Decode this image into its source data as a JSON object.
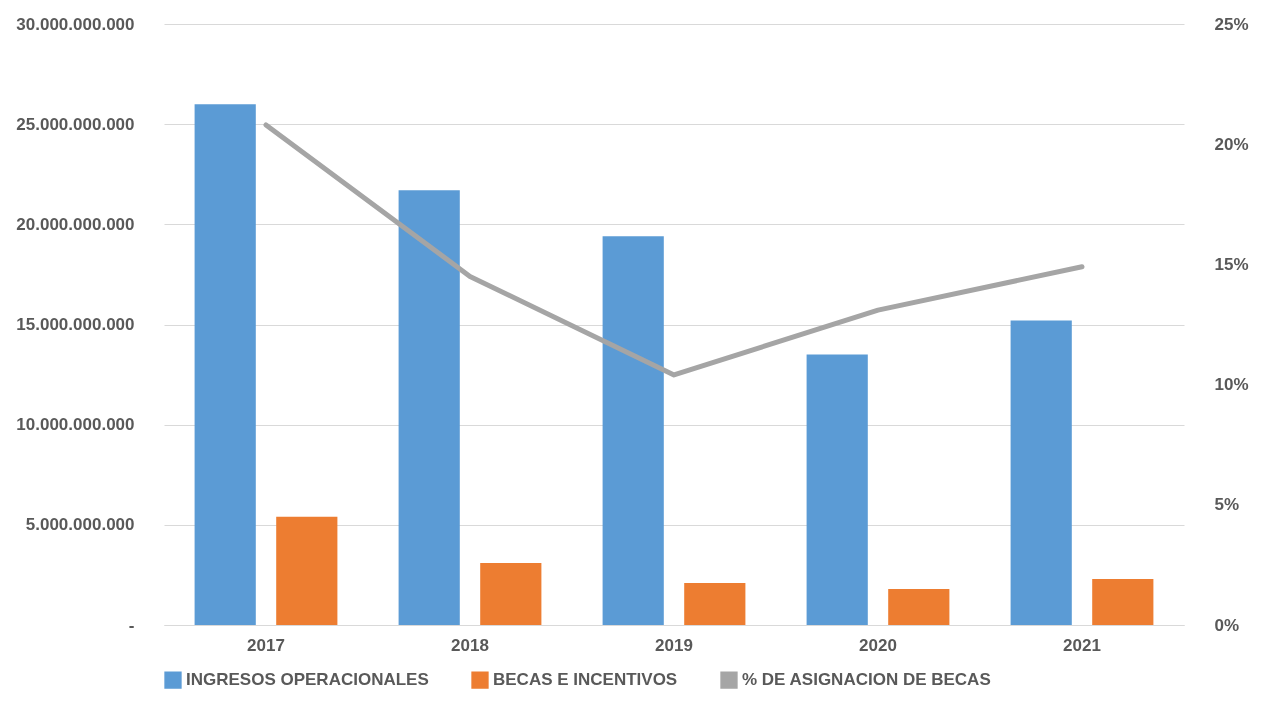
{
  "chart_data": {
    "type": "bar",
    "categories": [
      "2017",
      "2018",
      "2019",
      "2020",
      "2021"
    ],
    "series": [
      {
        "name": "INGRESOS OPERACIONALES",
        "color": "#5b9bd5",
        "values": [
          26000000000,
          21700000000,
          19400000000,
          13500000000,
          15200000000
        ]
      },
      {
        "name": "BECAS E INCENTIVOS",
        "color": "#ed7d31",
        "values": [
          5400000000,
          3100000000,
          2100000000,
          1800000000,
          2300000000
        ]
      },
      {
        "name": "% DE ASIGNACION DE BECAS",
        "color": "#a5a5a5",
        "type": "line",
        "axis": "y2",
        "values": [
          20.8,
          14.5,
          10.4,
          13.1,
          14.9
        ]
      }
    ],
    "ylim": [
      0,
      30000000000
    ],
    "yticks": [
      {
        "value": 0,
        "label": "-"
      },
      {
        "value": 5000000000,
        "label": "5.000.000.000"
      },
      {
        "value": 10000000000,
        "label": "10.000.000.000"
      },
      {
        "value": 15000000000,
        "label": "15.000.000.000"
      },
      {
        "value": 20000000000,
        "label": "20.000.000.000"
      },
      {
        "value": 25000000000,
        "label": "25.000.000.000"
      },
      {
        "value": 30000000000,
        "label": "30.000.000.000"
      }
    ],
    "y2lim": [
      0,
      25
    ],
    "y2ticks": [
      {
        "value": 0,
        "label": "0%"
      },
      {
        "value": 5,
        "label": "5%"
      },
      {
        "value": 10,
        "label": "10%"
      },
      {
        "value": 15,
        "label": "15%"
      },
      {
        "value": 20,
        "label": "20%"
      },
      {
        "value": 25,
        "label": "25%"
      }
    ],
    "grid": "y",
    "legend": "bottom"
  }
}
